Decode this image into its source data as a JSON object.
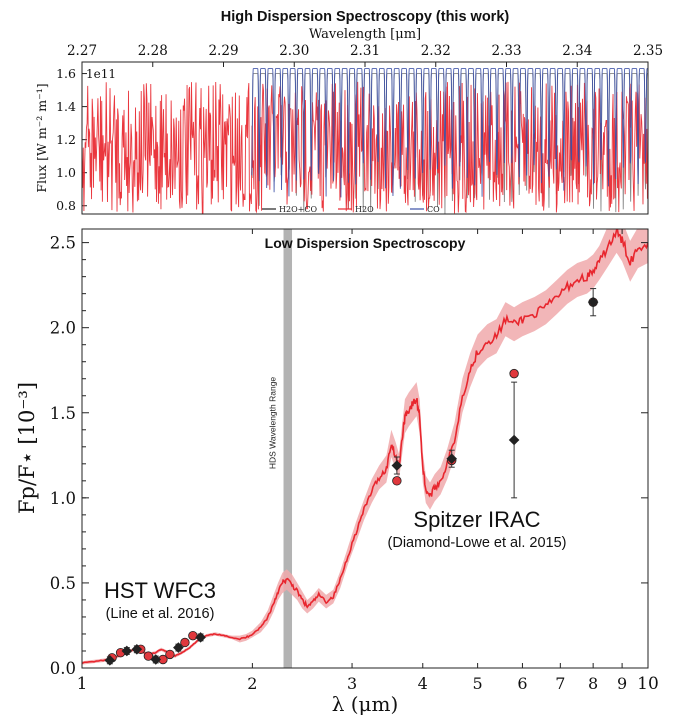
{
  "chart_data": [
    {
      "type": "line",
      "title": "High Dispersion Spectroscopy (this work)",
      "xlabel": "Wavelength [μm]",
      "ylabel": "Flux [W m⁻² m⁻¹]",
      "offset_label": "1e11",
      "xlim": [
        2.27,
        2.35
      ],
      "ylim": [
        0.75,
        1.67
      ],
      "xticks": [
        "2.27",
        "2.28",
        "2.29",
        "2.30",
        "2.31",
        "2.32",
        "2.33",
        "2.34",
        "2.35"
      ],
      "yticks": [
        "0.8",
        "1.0",
        "1.2",
        "1.4",
        "1.6"
      ],
      "legend_position": "bottom-center",
      "series": [
        {
          "name": "H2O+CO",
          "color": "#222222",
          "region": [
            2.294,
            2.35
          ],
          "baseline": 1.6,
          "depth": 0.75
        },
        {
          "name": "H2O",
          "color": "#e8262e",
          "region": [
            2.27,
            2.35
          ],
          "baseline": 1.55,
          "depth": 0.75
        },
        {
          "name": "CO",
          "color": "#3b4fa6",
          "region": [
            2.294,
            2.35
          ],
          "baseline": 1.63,
          "depth": 0.85
        }
      ]
    },
    {
      "type": "line",
      "title": "Low Dispersion Spectroscopy",
      "xlabel": "λ (μm)",
      "ylabel": "Fp/F⋆ [10⁻³]",
      "xscale": "log",
      "xlim": [
        1.0,
        10.0
      ],
      "ylim": [
        0.0,
        2.58
      ],
      "xticks": [
        "1",
        "2",
        "3",
        "4",
        "5",
        "6",
        "7",
        "8",
        "9",
        "10"
      ],
      "yticks": [
        "0.0",
        "0.5",
        "1.0",
        "1.5",
        "2.0",
        "2.5"
      ],
      "hds_band": {
        "range": [
          2.27,
          2.35
        ],
        "label": "HDS Wavelength Range"
      },
      "model": {
        "color": "#e8262e",
        "band_color": "#f0a9ab",
        "x": [
          1.0,
          1.06,
          1.12,
          1.16,
          1.2,
          1.24,
          1.27,
          1.31,
          1.35,
          1.38,
          1.42,
          1.46,
          1.5,
          1.55,
          1.6,
          1.66,
          1.72,
          1.78,
          1.84,
          1.9,
          1.95,
          2.0,
          2.07,
          2.13,
          2.18,
          2.22,
          2.26,
          2.3,
          2.35,
          2.4,
          2.45,
          2.5,
          2.56,
          2.62,
          2.7,
          2.78,
          2.86,
          2.95,
          3.05,
          3.15,
          3.25,
          3.35,
          3.45,
          3.52,
          3.58,
          3.63,
          3.68,
          3.72,
          3.78,
          3.84,
          3.9,
          3.95,
          4.0,
          4.05,
          4.12,
          4.2,
          4.3,
          4.42,
          4.55,
          4.7,
          4.85,
          5.0,
          5.2,
          5.4,
          5.6,
          5.8,
          6.0,
          6.3,
          6.6,
          6.9,
          7.2,
          7.5,
          7.8,
          8.0,
          8.2,
          8.5,
          8.8,
          9.0,
          9.3,
          9.6,
          10.0
        ],
        "y": [
          0.03,
          0.04,
          0.05,
          0.07,
          0.09,
          0.11,
          0.1,
          0.08,
          0.09,
          0.11,
          0.09,
          0.07,
          0.09,
          0.12,
          0.16,
          0.19,
          0.2,
          0.19,
          0.18,
          0.17,
          0.18,
          0.2,
          0.24,
          0.3,
          0.38,
          0.45,
          0.5,
          0.52,
          0.49,
          0.45,
          0.4,
          0.36,
          0.39,
          0.43,
          0.39,
          0.42,
          0.52,
          0.66,
          0.8,
          0.93,
          1.04,
          1.12,
          1.17,
          1.32,
          1.25,
          1.18,
          1.35,
          1.48,
          1.52,
          1.55,
          1.58,
          1.48,
          1.18,
          1.05,
          1.01,
          1.06,
          1.1,
          1.2,
          1.34,
          1.6,
          1.75,
          1.86,
          1.92,
          1.95,
          2.05,
          2.02,
          2.05,
          2.08,
          2.12,
          2.18,
          2.24,
          2.28,
          2.3,
          2.33,
          2.38,
          2.48,
          2.56,
          2.51,
          2.39,
          2.47,
          2.5
        ],
        "spread": [
          0.01,
          0.01,
          0.01,
          0.01,
          0.01,
          0.01,
          0.01,
          0.01,
          0.01,
          0.01,
          0.01,
          0.01,
          0.01,
          0.01,
          0.01,
          0.01,
          0.01,
          0.01,
          0.01,
          0.02,
          0.02,
          0.02,
          0.03,
          0.04,
          0.05,
          0.05,
          0.06,
          0.06,
          0.06,
          0.05,
          0.05,
          0.04,
          0.04,
          0.04,
          0.04,
          0.04,
          0.05,
          0.05,
          0.06,
          0.06,
          0.07,
          0.07,
          0.08,
          0.08,
          0.08,
          0.08,
          0.09,
          0.1,
          0.1,
          0.1,
          0.1,
          0.1,
          0.09,
          0.08,
          0.08,
          0.08,
          0.08,
          0.09,
          0.1,
          0.1,
          0.1,
          0.1,
          0.1,
          0.1,
          0.1,
          0.1,
          0.1,
          0.1,
          0.1,
          0.1,
          0.1,
          0.1,
          0.1,
          0.1,
          0.1,
          0.12,
          0.12,
          0.12,
          0.12,
          0.12,
          0.12
        ]
      },
      "observed": {
        "color": "#222222",
        "points": [
          {
            "x": 1.12,
            "y": 0.045,
            "err": 0.02
          },
          {
            "x": 1.2,
            "y": 0.1,
            "err": 0.02
          },
          {
            "x": 1.25,
            "y": 0.11,
            "err": 0.02
          },
          {
            "x": 1.35,
            "y": 0.05,
            "err": 0.02
          },
          {
            "x": 1.48,
            "y": 0.12,
            "err": 0.02
          },
          {
            "x": 1.62,
            "y": 0.18,
            "err": 0.02
          },
          {
            "x": 3.6,
            "y": 1.19,
            "err": 0.05
          },
          {
            "x": 4.5,
            "y": 1.23,
            "err": 0.05
          },
          {
            "x": 5.8,
            "y": 1.34,
            "err": 0.34
          },
          {
            "x": 8.0,
            "y": 2.15,
            "err": 0.08
          }
        ]
      },
      "model_binned": {
        "color": "#e8262e",
        "points": [
          {
            "x": 1.13,
            "y": 0.06
          },
          {
            "x": 1.17,
            "y": 0.09
          },
          {
            "x": 1.27,
            "y": 0.11
          },
          {
            "x": 1.31,
            "y": 0.07
          },
          {
            "x": 1.39,
            "y": 0.05
          },
          {
            "x": 1.43,
            "y": 0.08
          },
          {
            "x": 1.52,
            "y": 0.15
          },
          {
            "x": 1.57,
            "y": 0.19
          },
          {
            "x": 3.6,
            "y": 1.1
          },
          {
            "x": 4.5,
            "y": 1.22
          },
          {
            "x": 5.8,
            "y": 1.73
          },
          {
            "x": 8.0,
            "y": 2.15
          }
        ]
      },
      "annotations": [
        {
          "text": "HST WFC3",
          "sub": "(Line et al. 2016)"
        },
        {
          "text": "Spitzer IRAC",
          "sub": "(Diamond-Lowe et al. 2015)"
        }
      ]
    }
  ]
}
